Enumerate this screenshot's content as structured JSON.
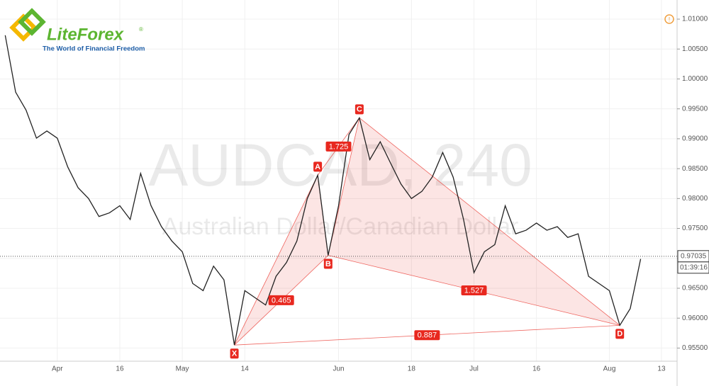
{
  "chart_data": {
    "type": "line",
    "watermark_symbol": "AUDCAD, 240",
    "watermark_name": "Australian Dollar/Canadian Dollar",
    "logo": {
      "brand": "LiteForex",
      "mark": "®",
      "tagline": "The World of Financial Freedom"
    },
    "categories": [
      null,
      null,
      null,
      null,
      null,
      "Apr",
      null,
      null,
      null,
      null,
      null,
      "16",
      null,
      null,
      null,
      null,
      null,
      "May",
      null,
      null,
      null,
      null,
      null,
      "14",
      null,
      null,
      null,
      null,
      null,
      null,
      null,
      null,
      "Jun",
      null,
      null,
      null,
      null,
      null,
      null,
      "18",
      null,
      null,
      null,
      null,
      null,
      "Jul",
      null,
      null,
      null,
      null,
      null,
      "16",
      null,
      null,
      null,
      null,
      null,
      null,
      "Aug",
      null,
      null,
      null,
      null,
      "13",
      null
    ],
    "values": [
      1.0073,
      0.9978,
      0.9948,
      0.9901,
      0.9913,
      0.9901,
      0.9853,
      0.9818,
      0.98,
      0.977,
      0.9776,
      0.9788,
      0.9765,
      0.9842,
      0.9788,
      0.9753,
      0.9729,
      0.9711,
      0.9658,
      0.9646,
      0.9687,
      0.9664,
      0.9555,
      0.9646,
      0.9634,
      0.9622,
      0.967,
      0.9693,
      0.9729,
      0.98,
      0.9839,
      0.9705,
      0.9788,
      0.9907,
      0.9935,
      0.9865,
      0.9895,
      0.9859,
      0.9824,
      0.98,
      0.9812,
      0.9836,
      0.9877,
      0.9836,
      0.9765,
      0.9676,
      0.9711,
      0.9723,
      0.9788,
      0.9741,
      0.9747,
      0.9759,
      0.9747,
      0.9753,
      0.9735,
      0.9741,
      0.967,
      0.9658,
      0.9646,
      0.9588,
      0.9616,
      0.9699,
      null,
      null,
      null
    ],
    "color": "#222222",
    "ylim": [
      0.9528,
      1.0132
    ],
    "yticks": [
      {
        "value": 0.955,
        "label": "0.95500"
      },
      {
        "value": 0.96,
        "label": "0.96000"
      },
      {
        "value": 0.965,
        "label": "0.96500"
      },
      {
        "value": 0.97,
        "label": "0.97000"
      },
      {
        "value": 0.975,
        "label": "0.97500"
      },
      {
        "value": 0.98,
        "label": "0.98000"
      },
      {
        "value": 0.985,
        "label": "0.98500"
      },
      {
        "value": 0.99,
        "label": "0.99000"
      },
      {
        "value": 0.995,
        "label": "0.99500"
      },
      {
        "value": 1.0,
        "label": "1.00000"
      },
      {
        "value": 1.005,
        "label": "1.00500"
      },
      {
        "value": 1.01,
        "label": "1.01000"
      }
    ],
    "grid": true,
    "current_price": 0.97035,
    "countdown": "01:39:16",
    "pattern": {
      "color": "#e8281f",
      "points": [
        {
          "label": "X",
          "value": 0.9555
        },
        {
          "label": "A",
          "value": 0.9839
        },
        {
          "label": "B",
          "value": 0.9705
        },
        {
          "label": "C",
          "value": 0.9935
        },
        {
          "label": "D",
          "value": 0.9588
        }
      ],
      "ratios": [
        0.465,
        1.725,
        1.527,
        0.887
      ]
    }
  }
}
